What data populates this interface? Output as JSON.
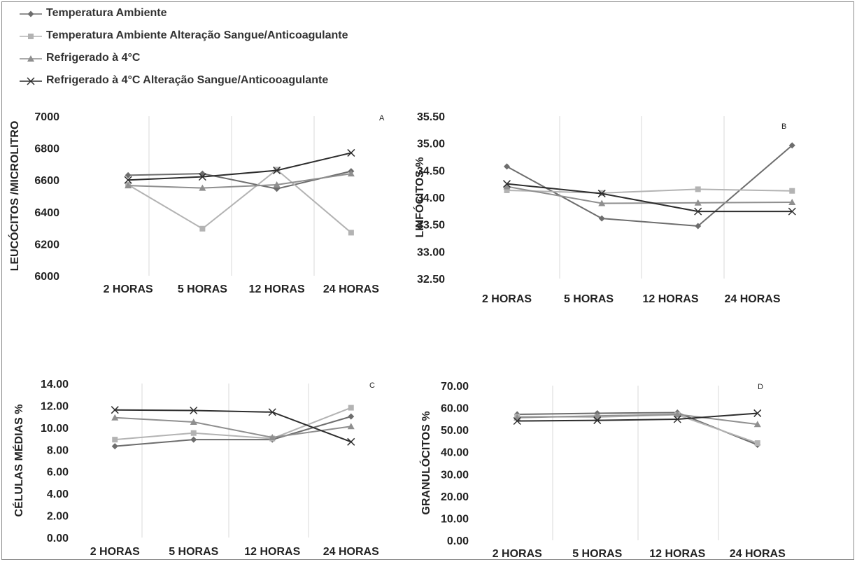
{
  "legend": [
    {
      "name": "Temperatura Ambiente",
      "color": "#6d6d6d",
      "marker": "diamond"
    },
    {
      "name": "Temperatura Ambiente Alteração Sangue/Anticoagulante",
      "color": "#b3b3b3",
      "marker": "square"
    },
    {
      "name": "Refrigerado à 4°C",
      "color": "#8f8f8f",
      "marker": "triangle"
    },
    {
      "name": "Refrigerado à 4°C Alteração Sangue/Anticooagulante",
      "color": "#2d2d2d",
      "marker": "cross"
    }
  ],
  "chart_data": [
    {
      "type": "line",
      "panel": "A",
      "ylabel": "LEUCÓCITOS /MICROLITRO",
      "categories": [
        "2 HORAS",
        "5 HORAS",
        "12 HORAS",
        "24 HORAS"
      ],
      "ylim": [
        6000,
        7000
      ],
      "yticks": [
        6000,
        6200,
        6400,
        6600,
        6800,
        7000
      ],
      "ydecimals": 0,
      "grid": "vertical",
      "series": [
        {
          "name": "Temperatura Ambiente",
          "values": [
            6630,
            6640,
            6545,
            6655
          ]
        },
        {
          "name": "Temperatura Ambiente Alteração Sangue/Anticoagulante",
          "values": [
            6570,
            6295,
            6665,
            6270
          ]
        },
        {
          "name": "Refrigerado à 4°C",
          "values": [
            6565,
            6550,
            6570,
            6640
          ]
        },
        {
          "name": "Refrigerado à 4°C Alteração Sangue/Anticooagulante",
          "values": [
            6600,
            6620,
            6660,
            6770
          ]
        }
      ]
    },
    {
      "type": "line",
      "panel": "B",
      "ylabel": "LINFÓCITOS %",
      "categories": [
        "2 HORAS",
        "5 HORAS",
        "12 HORAS",
        "24 HORAS"
      ],
      "ylim": [
        32.5,
        35.5
      ],
      "yticks": [
        32.5,
        33.0,
        33.5,
        34.0,
        34.5,
        35.0,
        35.5
      ],
      "ydecimals": 2,
      "grid": "vertical",
      "series": [
        {
          "name": "Temperatura Ambiente",
          "values": [
            34.57,
            33.61,
            33.47,
            34.96
          ]
        },
        {
          "name": "Temperatura Ambiente Alteração Sangue/Anticoagulante",
          "values": [
            34.13,
            34.08,
            34.15,
            34.12
          ]
        },
        {
          "name": "Refrigerado à 4°C",
          "values": [
            34.2,
            33.89,
            33.9,
            33.91
          ]
        },
        {
          "name": "Refrigerado à 4°C Alteração Sangue/Anticooagulante",
          "values": [
            34.25,
            34.07,
            33.74,
            33.74
          ]
        }
      ]
    },
    {
      "type": "line",
      "panel": "C",
      "ylabel": "CÉLULAS MÉDIAS %",
      "categories": [
        "2 HORAS",
        "5 HORAS",
        "12 HORAS",
        "24 HORAS"
      ],
      "ylim": [
        0,
        14
      ],
      "yticks": [
        0,
        2,
        4,
        6,
        8,
        10,
        12,
        14
      ],
      "ydecimals": 2,
      "grid": "vertical",
      "series": [
        {
          "name": "Temperatura Ambiente",
          "values": [
            8.3,
            8.9,
            8.9,
            11.0
          ]
        },
        {
          "name": "Temperatura Ambiente Alteração Sangue/Anticoagulante",
          "values": [
            8.9,
            9.5,
            9.0,
            11.8
          ]
        },
        {
          "name": "Refrigerado à 4°C",
          "values": [
            10.9,
            10.5,
            9.1,
            10.1
          ]
        },
        {
          "name": "Refrigerado à 4°C Alteração Sangue/Anticooagulante",
          "values": [
            11.6,
            11.55,
            11.4,
            8.7
          ]
        }
      ]
    },
    {
      "type": "line",
      "panel": "D",
      "ylabel": "GRANULÓCITOS %",
      "categories": [
        "2 HORAS",
        "5 HORAS",
        "12 HORAS",
        "24 HORAS"
      ],
      "ylim": [
        0,
        70
      ],
      "yticks": [
        0,
        10,
        20,
        30,
        40,
        50,
        60,
        70
      ],
      "ydecimals": 2,
      "grid": "vertical",
      "series": [
        {
          "name": "Temperatura Ambiente",
          "values": [
            57.0,
            57.5,
            57.8,
            43.2
          ]
        },
        {
          "name": "Temperatura Ambiente Alteração Sangue/Anticoagulante",
          "values": [
            56.0,
            55.8,
            56.8,
            44.0
          ]
        },
        {
          "name": "Refrigerado à 4°C",
          "values": [
            55.5,
            56.3,
            57.0,
            52.5
          ]
        },
        {
          "name": "Refrigerado à 4°C Alteração Sangue/Anticooagulante",
          "values": [
            54.0,
            54.3,
            54.8,
            57.5
          ]
        }
      ]
    }
  ]
}
